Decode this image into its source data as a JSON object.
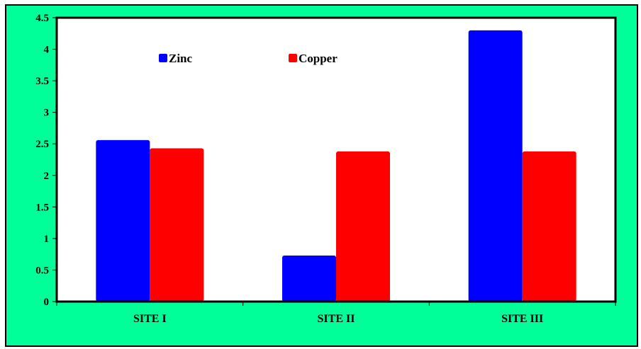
{
  "colors": {
    "background": "#00ff99",
    "plot_area": "#ffffff",
    "zinc": "#0000ff",
    "copper": "#ff0000",
    "axis": "#000000"
  },
  "chart_data": {
    "type": "bar",
    "categories": [
      "SITE I",
      "SITE II",
      "SITE III"
    ],
    "series": [
      {
        "name": "Zinc",
        "color": "#0000ff",
        "values": [
          2.56,
          0.73,
          4.3
        ]
      },
      {
        "name": "Copper",
        "color": "#ff0000",
        "values": [
          2.43,
          2.38,
          2.38
        ]
      }
    ],
    "ylim": [
      0,
      4.5
    ],
    "yticks": [
      "0",
      "0.5",
      "1",
      "1.5",
      "2",
      "2.5",
      "3",
      "3.5",
      "4",
      "4.5"
    ],
    "title": "",
    "xlabel": "",
    "ylabel": "",
    "legend": "top-left, inside plot",
    "grid": false
  }
}
